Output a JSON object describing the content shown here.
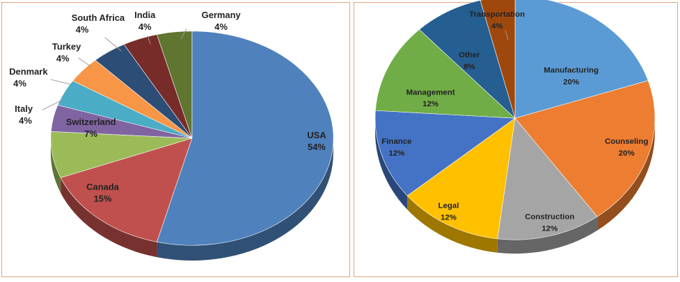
{
  "chart_data": [
    {
      "type": "pie",
      "title": "",
      "style": "3d-tilted",
      "slices": [
        {
          "label": "USA",
          "value": 54,
          "value_label": "54%",
          "color": "#4f81bd"
        },
        {
          "label": "Canada",
          "value": 15,
          "value_label": "15%",
          "color": "#c0504d"
        },
        {
          "label": "Switzerland",
          "value": 7,
          "value_label": "7%",
          "color": "#9bbb59"
        },
        {
          "label": "Italy",
          "value": 4,
          "value_label": "4%",
          "color": "#8064a2"
        },
        {
          "label": "Denmark",
          "value": 4,
          "value_label": "4%",
          "color": "#4bacc6"
        },
        {
          "label": "Turkey",
          "value": 4,
          "value_label": "4%",
          "color": "#f79646"
        },
        {
          "label": "South Africa",
          "value": 4,
          "value_label": "4%",
          "color": "#2c4d75"
        },
        {
          "label": "India",
          "value": 4,
          "value_label": "4%",
          "color": "#772c2a"
        },
        {
          "label": "Germany",
          "value": 4,
          "value_label": "4%",
          "color": "#5f7530"
        }
      ]
    },
    {
      "type": "pie",
      "title": "",
      "style": "3d-tilted",
      "slices": [
        {
          "label": "Manufacturing",
          "value": 20,
          "value_label": "20%",
          "color": "#5b9bd5"
        },
        {
          "label": "Counseling",
          "value": 20,
          "value_label": "20%",
          "color": "#ed7d31"
        },
        {
          "label": "Construction",
          "value": 12,
          "value_label": "12%",
          "color": "#a5a5a5"
        },
        {
          "label": "Legal",
          "value": 12,
          "value_label": "12%",
          "color": "#ffc000"
        },
        {
          "label": "Finance",
          "value": 12,
          "value_label": "12%",
          "color": "#4472c4"
        },
        {
          "label": "Management",
          "value": 12,
          "value_label": "12%",
          "color": "#70ad47"
        },
        {
          "label": "Other",
          "value": 8,
          "value_label": "8%",
          "color": "#255e91"
        },
        {
          "label": "Transportation",
          "value": 4,
          "value_label": "4%",
          "color": "#9e480e"
        }
      ]
    }
  ]
}
